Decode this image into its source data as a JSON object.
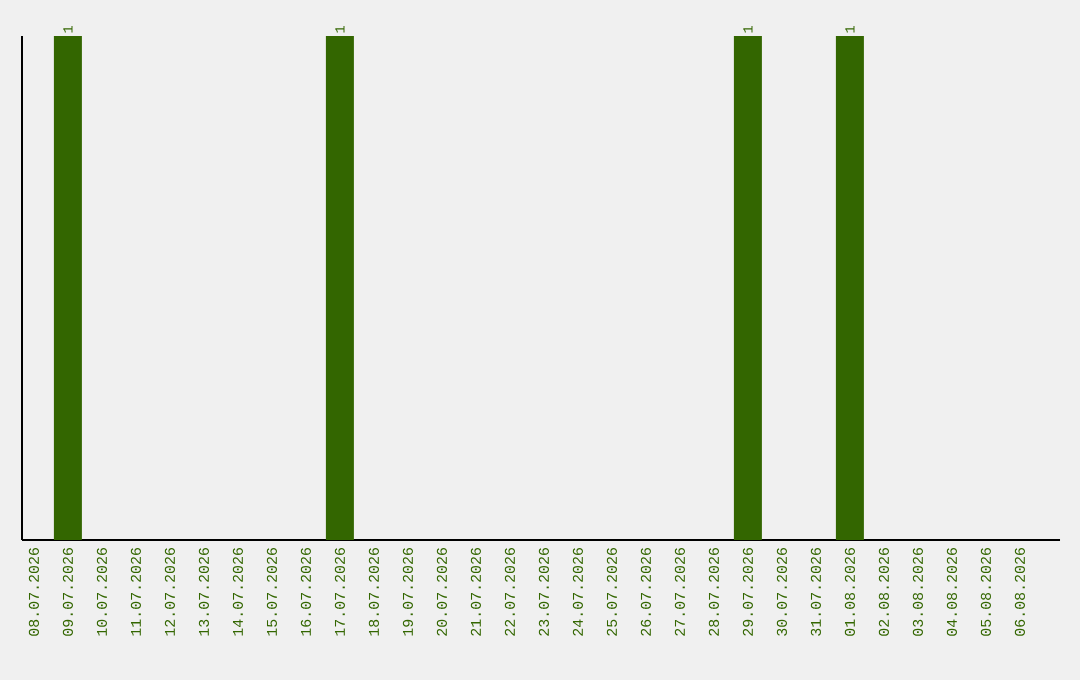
{
  "chart_data": {
    "type": "bar",
    "categories": [
      "08.07.2026",
      "09.07.2026",
      "10.07.2026",
      "11.07.2026",
      "12.07.2026",
      "13.07.2026",
      "14.07.2026",
      "15.07.2026",
      "16.07.2026",
      "17.07.2026",
      "18.07.2026",
      "19.07.2026",
      "20.07.2026",
      "21.07.2026",
      "22.07.2026",
      "23.07.2026",
      "24.07.2026",
      "25.07.2026",
      "26.07.2026",
      "27.07.2026",
      "28.07.2026",
      "29.07.2026",
      "30.07.2026",
      "31.07.2026",
      "01.08.2026",
      "02.08.2026",
      "03.08.2026",
      "04.08.2026",
      "05.08.2026",
      "06.08.2026"
    ],
    "values": [
      0,
      1,
      0,
      0,
      0,
      0,
      0,
      0,
      0,
      1,
      0,
      0,
      0,
      0,
      0,
      0,
      0,
      0,
      0,
      0,
      0,
      1,
      0,
      0,
      1,
      0,
      0,
      0,
      0,
      0
    ],
    "value_labels": [
      null,
      "1",
      null,
      null,
      null,
      null,
      null,
      null,
      null,
      "1",
      null,
      null,
      null,
      null,
      null,
      null,
      null,
      null,
      null,
      null,
      null,
      "1",
      null,
      null,
      "1",
      null,
      null,
      null,
      null,
      null
    ],
    "color": "#336600"
  }
}
